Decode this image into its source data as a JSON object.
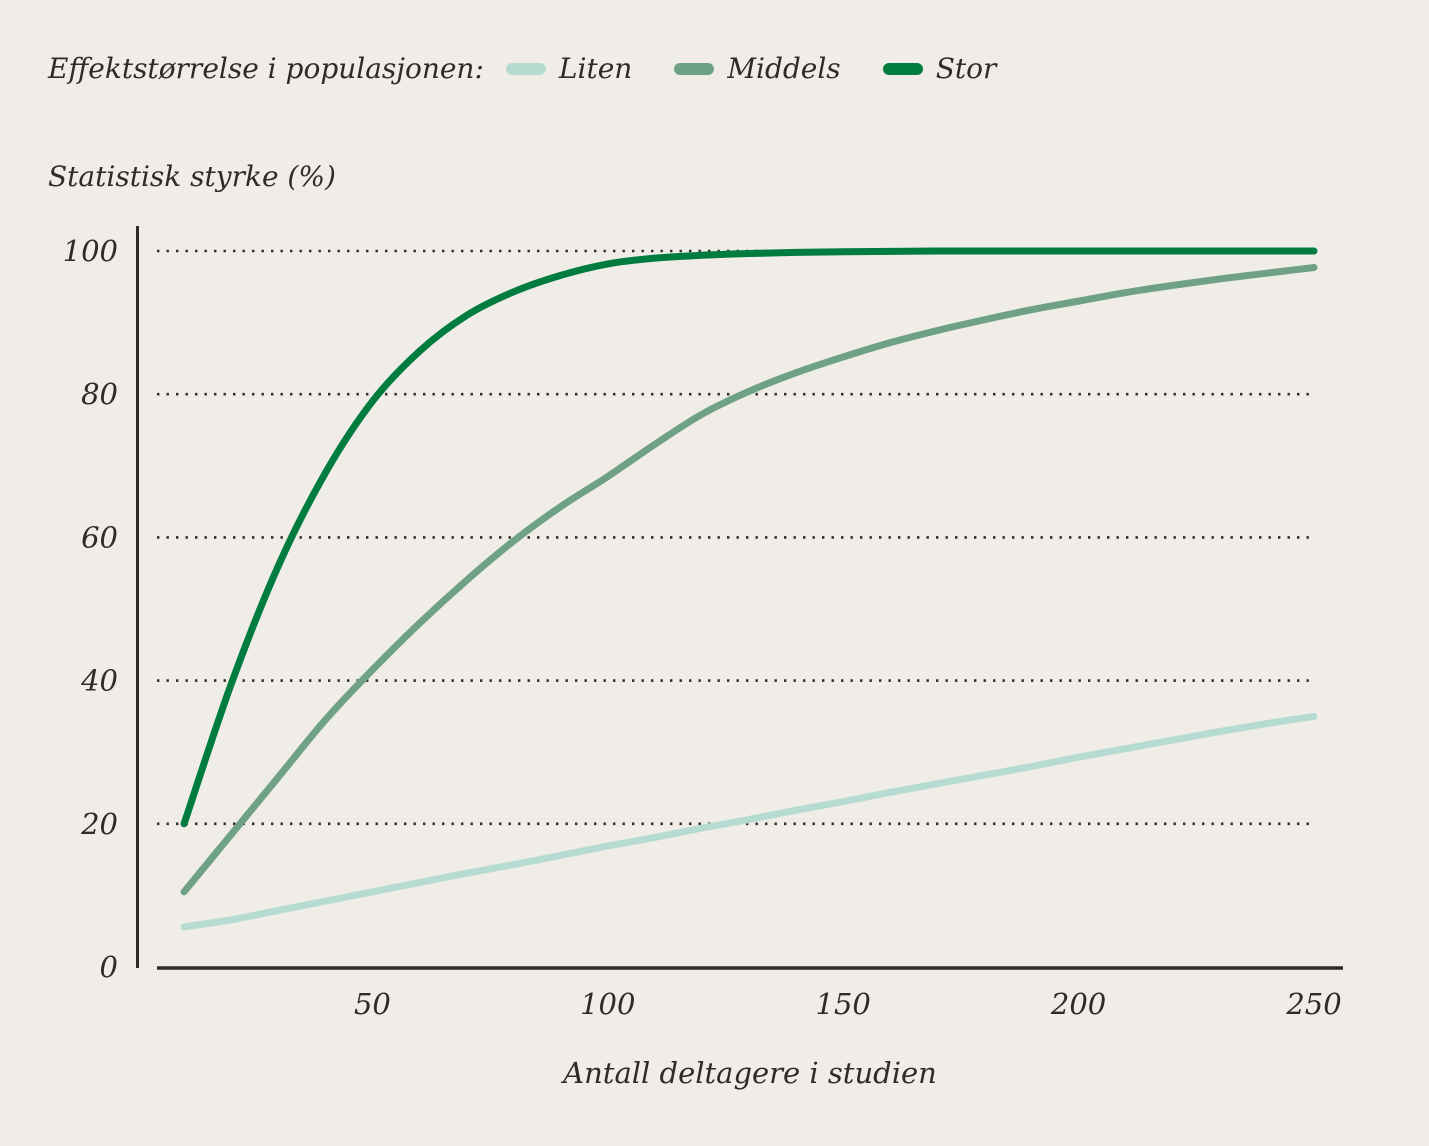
{
  "legend": {
    "title": "Effektstørrelse i populasjonen:",
    "items": [
      {
        "label": "Liten",
        "color": "#b6dcd1"
      },
      {
        "label": "Middels",
        "color": "#6fa284"
      },
      {
        "label": "Stor",
        "color": "#007c3e"
      }
    ]
  },
  "chart_data": {
    "type": "line",
    "title": "",
    "ylabel": "Statistisk styrke (%)",
    "xlabel": "Antall deltagere i studien",
    "x": [
      10,
      20,
      30,
      40,
      50,
      60,
      70,
      80,
      90,
      100,
      110,
      120,
      130,
      140,
      150,
      160,
      170,
      180,
      190,
      200,
      210,
      220,
      230,
      240,
      250
    ],
    "series": [
      {
        "name": "Liten",
        "color": "#b6dcd1",
        "values": [
          5.6,
          6.6,
          7.9,
          9.2,
          10.5,
          11.8,
          13.1,
          14.3,
          15.6,
          16.9,
          18.1,
          19.4,
          20.6,
          21.9,
          23.1,
          24.4,
          25.6,
          26.8,
          28.0,
          29.3,
          30.5,
          31.7,
          32.9,
          34.0,
          35.0
        ]
      },
      {
        "name": "Middels",
        "color": "#6fa284",
        "values": [
          10.5,
          18.5,
          26.5,
          34.5,
          41.5,
          48.0,
          54.0,
          59.5,
          64.3,
          68.5,
          73.0,
          77.2,
          80.4,
          83.0,
          85.2,
          87.2,
          88.9,
          90.4,
          91.8,
          93.0,
          94.2,
          95.2,
          96.1,
          96.9,
          97.7
        ]
      },
      {
        "name": "Stor",
        "color": "#007c3e",
        "values": [
          20,
          39.5,
          56,
          69,
          79,
          86,
          91,
          94.3,
          96.6,
          98.2,
          99.0,
          99.4,
          99.65,
          99.8,
          99.9,
          99.95,
          100,
          100,
          100,
          100,
          100,
          100,
          100,
          100,
          100
        ]
      }
    ],
    "x_ticks": [
      50,
      100,
      150,
      200,
      250
    ],
    "y_ticks": [
      0,
      20,
      40,
      60,
      80,
      100
    ],
    "xlim": [
      0,
      250
    ],
    "ylim": [
      0,
      100
    ],
    "grid": "dotted-horizontal",
    "legend_position": "top-left",
    "background_color": "#f0ede9",
    "axis_color": "#2f2c28",
    "text_color": "#2f2c28",
    "line_width": 7
  }
}
